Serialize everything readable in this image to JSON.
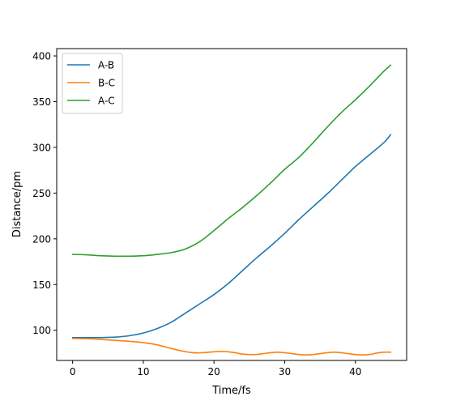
{
  "chart_data": {
    "type": "line",
    "title": "",
    "xlabel": "Time/fs",
    "ylabel": "Distance/pm",
    "xlim": [
      -2.25,
      47.25
    ],
    "ylim": [
      67.0,
      408.0
    ],
    "xticks": [
      0,
      10,
      20,
      30,
      40
    ],
    "yticks": [
      100,
      150,
      200,
      250,
      300,
      350,
      400
    ],
    "grid": false,
    "legend_position": "top-left",
    "series": [
      {
        "name": "A-B",
        "color": "#1f77b4",
        "x": [
          0,
          2,
          4,
          6,
          8,
          10,
          12,
          14,
          16,
          18,
          20,
          22,
          24,
          26,
          28,
          30,
          32,
          34,
          36,
          38,
          40,
          42,
          44,
          45
        ],
        "y": [
          92,
          92,
          92,
          92.5,
          94,
          97,
          102,
          109,
          119,
          129,
          139,
          151,
          165,
          179,
          192,
          206,
          221,
          235,
          249,
          264,
          279,
          292,
          305,
          314
        ]
      },
      {
        "name": "B-C",
        "color": "#ff7f0e",
        "x": [
          0,
          2,
          4,
          6,
          8,
          10,
          12,
          14,
          16,
          17,
          18,
          19,
          20,
          21,
          22,
          23,
          24,
          25,
          26,
          27,
          28,
          29,
          30,
          31,
          32,
          33,
          34,
          35,
          36,
          37,
          38,
          39,
          40,
          41,
          42,
          43,
          44,
          45
        ],
        "y": [
          91,
          90.8,
          90,
          89,
          88,
          86.5,
          84,
          80,
          76.5,
          75.5,
          75.3,
          75.8,
          76.5,
          76.8,
          76.5,
          75.5,
          74,
          73.5,
          73.5,
          74.5,
          75.5,
          76,
          75.5,
          74.5,
          73.5,
          73,
          73.5,
          74.5,
          75.5,
          76,
          75.5,
          74.5,
          73.5,
          73,
          73.5,
          75,
          76,
          76
        ]
      },
      {
        "name": "A-C",
        "color": "#2ca02c",
        "x": [
          0,
          2,
          4,
          6,
          8,
          10,
          12,
          14,
          16,
          18,
          20,
          22,
          24,
          26,
          28,
          30,
          32,
          34,
          36,
          38,
          40,
          42,
          44,
          45
        ],
        "y": [
          183,
          182.5,
          181.5,
          181,
          181,
          181.5,
          183,
          185,
          189,
          197,
          209,
          222,
          234,
          247,
          261,
          276,
          289,
          305,
          322,
          338,
          352,
          367,
          383,
          390
        ]
      }
    ]
  }
}
